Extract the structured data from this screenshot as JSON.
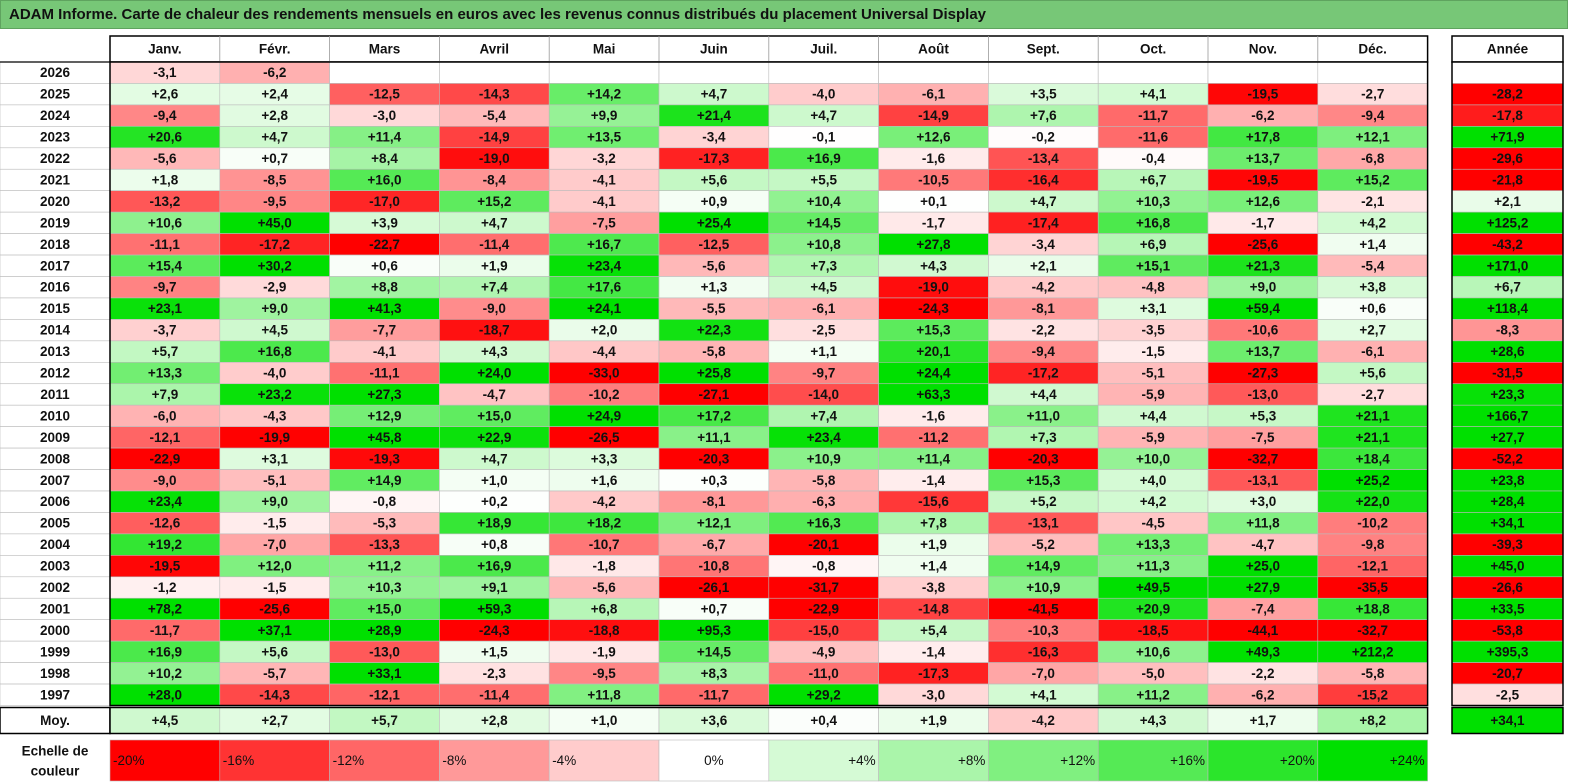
{
  "title": "ADAM Informe. Carte de chaleur des rendements mensuels en euros avec les revenus connus distribués du placement Universal Display",
  "chart_data": {
    "type": "heatmap",
    "months": [
      "Janv.",
      "Févr.",
      "Mars",
      "Avril",
      "Mai",
      "Juin",
      "Juil.",
      "Août",
      "Sept.",
      "Oct.",
      "Nov.",
      "Déc."
    ],
    "year_header": "Année",
    "rows": [
      {
        "year": "2026",
        "values": [
          "-3,1",
          "-6,2",
          "",
          "",
          "",
          "",
          "",
          "",
          "",
          "",
          "",
          ""
        ],
        "annual": ""
      },
      {
        "year": "2025",
        "values": [
          "+2,6",
          "+2,4",
          "-12,5",
          "-14,3",
          "+14,2",
          "+4,7",
          "-4,0",
          "-6,1",
          "+3,5",
          "+4,1",
          "-19,5",
          "-2,7"
        ],
        "annual": "-28,2"
      },
      {
        "year": "2024",
        "values": [
          "-9,4",
          "+2,8",
          "-3,0",
          "-5,4",
          "+9,9",
          "+21,4",
          "+4,7",
          "-14,9",
          "+7,6",
          "-11,7",
          "-6,2",
          "-9,4"
        ],
        "annual": "-17,8"
      },
      {
        "year": "2023",
        "values": [
          "+20,6",
          "+4,7",
          "+11,4",
          "-14,9",
          "+13,5",
          "-3,4",
          "-0,1",
          "+12,6",
          "-0,2",
          "-11,6",
          "+17,8",
          "+12,1"
        ],
        "annual": "+71,9"
      },
      {
        "year": "2022",
        "values": [
          "-5,6",
          "+0,7",
          "+8,4",
          "-19,0",
          "-3,2",
          "-17,3",
          "+16,9",
          "-1,6",
          "-13,4",
          "-0,4",
          "+13,7",
          "-6,8"
        ],
        "annual": "-29,6"
      },
      {
        "year": "2021",
        "values": [
          "+1,8",
          "-8,5",
          "+16,0",
          "-8,4",
          "-4,1",
          "+5,6",
          "+5,5",
          "-10,5",
          "-16,4",
          "+6,7",
          "-19,5",
          "+15,2"
        ],
        "annual": "-21,8"
      },
      {
        "year": "2020",
        "values": [
          "-13,2",
          "-9,5",
          "-17,0",
          "+15,2",
          "-4,1",
          "+0,9",
          "+10,4",
          "+0,1",
          "+4,7",
          "+10,3",
          "+12,6",
          "-2,1"
        ],
        "annual": "+2,1"
      },
      {
        "year": "2019",
        "values": [
          "+10,6",
          "+45,0",
          "+3,9",
          "+4,7",
          "-7,5",
          "+25,4",
          "+14,5",
          "-1,7",
          "-17,4",
          "+16,8",
          "-1,7",
          "+4,2"
        ],
        "annual": "+125,2"
      },
      {
        "year": "2018",
        "values": [
          "-11,1",
          "-17,2",
          "-22,7",
          "-11,4",
          "+16,7",
          "-12,5",
          "+10,8",
          "+27,8",
          "-3,4",
          "+6,9",
          "-25,6",
          "+1,4"
        ],
        "annual": "-43,2"
      },
      {
        "year": "2017",
        "values": [
          "+15,4",
          "+30,2",
          "+0,6",
          "+1,9",
          "+23,4",
          "-5,6",
          "+7,3",
          "+4,3",
          "+2,1",
          "+15,1",
          "+21,3",
          "-5,4"
        ],
        "annual": "+171,0"
      },
      {
        "year": "2016",
        "values": [
          "-9,7",
          "-2,9",
          "+8,8",
          "+7,4",
          "+17,6",
          "+1,3",
          "+4,5",
          "-19,0",
          "-4,2",
          "-4,8",
          "+9,0",
          "+3,8"
        ],
        "annual": "+6,7"
      },
      {
        "year": "2015",
        "values": [
          "+23,1",
          "+9,0",
          "+41,3",
          "-9,0",
          "+24,1",
          "-5,5",
          "-6,1",
          "-24,3",
          "-8,1",
          "+3,1",
          "+59,4",
          "+0,6"
        ],
        "annual": "+118,4"
      },
      {
        "year": "2014",
        "values": [
          "-3,7",
          "+4,5",
          "-7,7",
          "-18,7",
          "+2,0",
          "+22,3",
          "-2,5",
          "+15,3",
          "-2,2",
          "-3,5",
          "-10,6",
          "+2,7"
        ],
        "annual": "-8,3"
      },
      {
        "year": "2013",
        "values": [
          "+5,7",
          "+16,8",
          "-4,1",
          "+4,3",
          "-4,4",
          "-5,8",
          "+1,1",
          "+20,1",
          "-9,4",
          "-1,5",
          "+13,7",
          "-6,1"
        ],
        "annual": "+28,6"
      },
      {
        "year": "2012",
        "values": [
          "+13,3",
          "-4,0",
          "-11,1",
          "+24,0",
          "-33,0",
          "+25,8",
          "-9,7",
          "+24,4",
          "-17,2",
          "-5,1",
          "-27,3",
          "+5,6"
        ],
        "annual": "-31,5"
      },
      {
        "year": "2011",
        "values": [
          "+7,9",
          "+23,2",
          "+27,3",
          "-4,7",
          "-10,2",
          "-27,1",
          "-14,0",
          "+63,3",
          "+4,4",
          "-5,9",
          "-13,0",
          "-2,7"
        ],
        "annual": "+23,3"
      },
      {
        "year": "2010",
        "values": [
          "-6,0",
          "-4,3",
          "+12,9",
          "+15,0",
          "+24,9",
          "+17,2",
          "+7,4",
          "-1,6",
          "+11,0",
          "+4,4",
          "+5,3",
          "+21,1"
        ],
        "annual": "+166,7"
      },
      {
        "year": "2009",
        "values": [
          "-12,1",
          "-19,9",
          "+45,8",
          "+22,9",
          "-26,5",
          "+11,1",
          "+23,4",
          "-11,2",
          "+7,3",
          "-5,9",
          "-7,5",
          "+21,1"
        ],
        "annual": "+27,7"
      },
      {
        "year": "2008",
        "values": [
          "-22,9",
          "+3,1",
          "-19,3",
          "+4,7",
          "+3,3",
          "-20,3",
          "+10,9",
          "+11,4",
          "-20,3",
          "+10,0",
          "-32,7",
          "+18,4"
        ],
        "annual": "-52,2"
      },
      {
        "year": "2007",
        "values": [
          "-9,0",
          "-5,1",
          "+14,9",
          "+1,0",
          "+1,6",
          "+0,3",
          "-5,8",
          "-1,4",
          "+15,3",
          "+4,0",
          "-13,1",
          "+25,2"
        ],
        "annual": "+23,8"
      },
      {
        "year": "2006",
        "values": [
          "+23,4",
          "+9,0",
          "-0,8",
          "+0,2",
          "-4,2",
          "-8,1",
          "-6,3",
          "-15,6",
          "+5,2",
          "+4,2",
          "+3,0",
          "+22,0"
        ],
        "annual": "+28,4"
      },
      {
        "year": "2005",
        "values": [
          "-12,6",
          "-1,5",
          "-5,3",
          "+18,9",
          "+18,2",
          "+12,1",
          "+16,3",
          "+7,8",
          "-13,1",
          "-4,5",
          "+11,8",
          "-10,2"
        ],
        "annual": "+34,1"
      },
      {
        "year": "2004",
        "values": [
          "+19,2",
          "-7,0",
          "-13,3",
          "+0,8",
          "-10,7",
          "-6,7",
          "-20,1",
          "+1,9",
          "-5,2",
          "+13,3",
          "-4,7",
          "-9,8"
        ],
        "annual": "-39,3"
      },
      {
        "year": "2003",
        "values": [
          "-19,5",
          "+12,0",
          "+11,2",
          "+16,9",
          "-1,8",
          "-10,8",
          "-0,8",
          "+1,4",
          "+14,9",
          "+11,3",
          "+25,0",
          "-12,1"
        ],
        "annual": "+45,0"
      },
      {
        "year": "2002",
        "values": [
          "-1,2",
          "-1,5",
          "+10,3",
          "+9,1",
          "-5,6",
          "-26,1",
          "-31,7",
          "-3,8",
          "+10,9",
          "+49,5",
          "+27,9",
          "-35,5"
        ],
        "annual": "-26,6"
      },
      {
        "year": "2001",
        "values": [
          "+78,2",
          "-25,6",
          "+15,0",
          "+59,3",
          "+6,8",
          "+0,7",
          "-22,9",
          "-14,8",
          "-41,5",
          "+20,9",
          "-7,4",
          "+18,8"
        ],
        "annual": "+33,5"
      },
      {
        "year": "2000",
        "values": [
          "-11,7",
          "+37,1",
          "+28,9",
          "-24,3",
          "-18,8",
          "+95,3",
          "-15,0",
          "+5,4",
          "-10,3",
          "-18,5",
          "-44,1",
          "-32,7"
        ],
        "annual": "-53,8"
      },
      {
        "year": "1999",
        "values": [
          "+16,9",
          "+5,6",
          "-13,0",
          "+1,5",
          "-1,9",
          "+14,5",
          "-4,9",
          "-1,4",
          "-16,3",
          "+10,6",
          "+49,3",
          "+212,2"
        ],
        "annual": "+395,3"
      },
      {
        "year": "1998",
        "values": [
          "+10,2",
          "-5,7",
          "+33,1",
          "-2,3",
          "-9,5",
          "+8,3",
          "-11,0",
          "-17,3",
          "-7,0",
          "-5,0",
          "-2,2",
          "-5,8"
        ],
        "annual": "-20,7"
      },
      {
        "year": "1997",
        "values": [
          "+28,0",
          "-14,3",
          "-12,1",
          "-11,4",
          "+11,8",
          "-11,7",
          "+29,2",
          "-3,0",
          "+4,1",
          "+11,2",
          "-6,2",
          "-15,2"
        ],
        "annual": "-2,5"
      }
    ],
    "average": {
      "label": "Moy.",
      "values": [
        "+4,5",
        "+2,7",
        "+5,7",
        "+2,8",
        "+1,0",
        "+3,6",
        "+0,4",
        "+1,9",
        "-4,2",
        "+4,3",
        "+1,7",
        "+8,2"
      ],
      "annual": "+34,1"
    },
    "scale": {
      "label_line1": "Echelle de",
      "label_line2": "couleur",
      "steps": [
        "-20%",
        "-16%",
        "-12%",
        "-8%",
        "-4%",
        "0%",
        "+4%",
        "+8%",
        "+12%",
        "+16%",
        "+20%",
        "+24%"
      ]
    },
    "colors": {
      "neg_max": "#ff0000",
      "neutral": "#ffffff",
      "pos_max": "#00e000",
      "title_bg": "#77c777"
    }
  }
}
